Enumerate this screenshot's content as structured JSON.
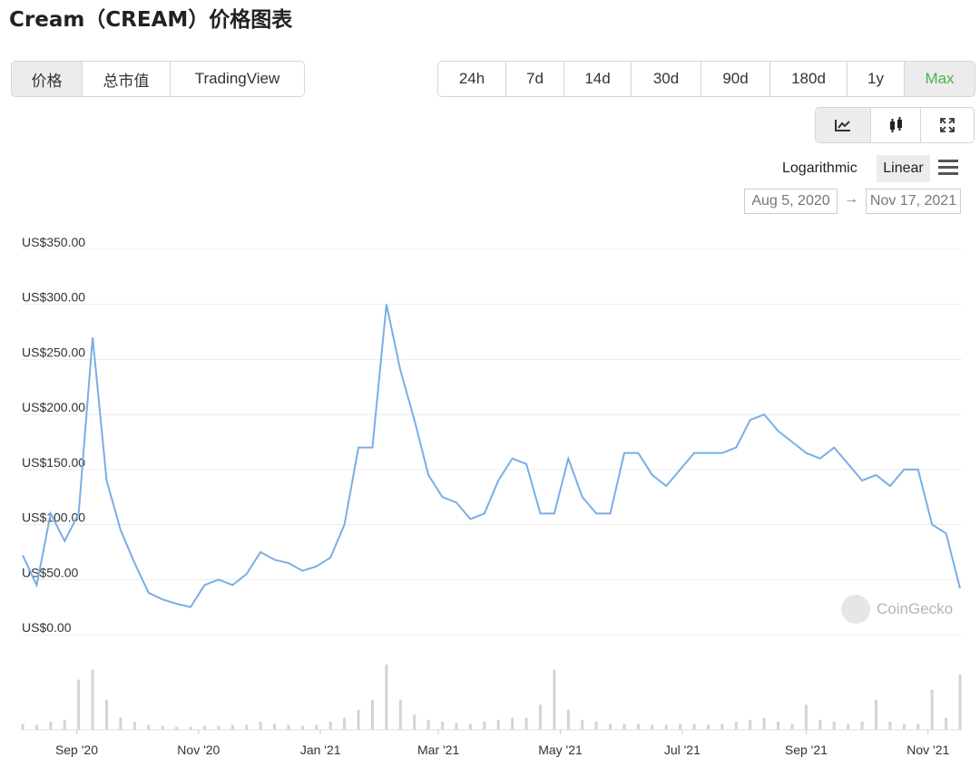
{
  "header": {
    "title": "Cream（CREAM）价格图表"
  },
  "tabs": [
    "价格",
    "总市值",
    "TradingView"
  ],
  "ranges": [
    "24h",
    "7d",
    "14d",
    "30d",
    "90d",
    "180d",
    "1y",
    "Max"
  ],
  "scale_options": [
    "Logarithmic",
    "Linear"
  ],
  "date_range": {
    "from": "Aug 5, 2020",
    "arrow": "→",
    "to": "Nov 17, 2021"
  },
  "watermark": "CoinGecko",
  "chart_data": {
    "type": "line",
    "color": "#7aaee6",
    "x": [
      "2020-08-05",
      "2020-08-12",
      "2020-08-19",
      "2020-08-26",
      "2020-09-02",
      "2020-09-09",
      "2020-09-16",
      "2020-09-23",
      "2020-09-30",
      "2020-10-07",
      "2020-10-14",
      "2020-10-21",
      "2020-10-28",
      "2020-11-04",
      "2020-11-11",
      "2020-11-18",
      "2020-11-25",
      "2020-12-02",
      "2020-12-09",
      "2020-12-16",
      "2020-12-23",
      "2020-12-30",
      "2021-01-06",
      "2021-01-13",
      "2021-01-20",
      "2021-01-27",
      "2021-02-03",
      "2021-02-10",
      "2021-02-17",
      "2021-02-24",
      "2021-03-03",
      "2021-03-10",
      "2021-03-17",
      "2021-03-24",
      "2021-03-31",
      "2021-04-07",
      "2021-04-14",
      "2021-04-21",
      "2021-04-28",
      "2021-05-05",
      "2021-05-12",
      "2021-05-19",
      "2021-05-26",
      "2021-06-02",
      "2021-06-09",
      "2021-06-16",
      "2021-06-23",
      "2021-06-30",
      "2021-07-07",
      "2021-07-14",
      "2021-07-21",
      "2021-07-28",
      "2021-08-04",
      "2021-08-11",
      "2021-08-18",
      "2021-08-25",
      "2021-09-01",
      "2021-09-08",
      "2021-09-15",
      "2021-09-22",
      "2021-09-29",
      "2021-10-06",
      "2021-10-13",
      "2021-10-20",
      "2021-10-27",
      "2021-11-03",
      "2021-11-10",
      "2021-11-17"
    ],
    "values": [
      72,
      45,
      110,
      85,
      110,
      270,
      140,
      95,
      65,
      38,
      32,
      28,
      25,
      45,
      50,
      45,
      55,
      75,
      68,
      65,
      58,
      62,
      70,
      100,
      170,
      170,
      300,
      240,
      195,
      145,
      125,
      120,
      105,
      110,
      140,
      160,
      155,
      110,
      110,
      160,
      125,
      110,
      110,
      165,
      165,
      145,
      135,
      150,
      165,
      165,
      165,
      170,
      195,
      200,
      185,
      175,
      165,
      160,
      170,
      155,
      140,
      145,
      135,
      150,
      150,
      100,
      92,
      42
    ],
    "volume": [
      6,
      5,
      8,
      10,
      50,
      60,
      30,
      12,
      8,
      5,
      4,
      3,
      3,
      4,
      4,
      5,
      5,
      8,
      6,
      5,
      4,
      5,
      8,
      12,
      20,
      30,
      65,
      30,
      15,
      10,
      8,
      7,
      6,
      8,
      10,
      12,
      12,
      25,
      60,
      20,
      10,
      8,
      6,
      6,
      6,
      5,
      5,
      6,
      6,
      5,
      6,
      8,
      10,
      12,
      8,
      6,
      25,
      10,
      8,
      6,
      8,
      30,
      8,
      6,
      6,
      40,
      12,
      55
    ],
    "ylim": [
      0,
      350
    ],
    "yticks": [
      {
        "value": 0,
        "label": "US$0.00"
      },
      {
        "value": 50,
        "label": "US$50.00"
      },
      {
        "value": 100,
        "label": "US$100.00"
      },
      {
        "value": 150,
        "label": "US$150.00"
      },
      {
        "value": 200,
        "label": "US$200.00"
      },
      {
        "value": 250,
        "label": "US$250.00"
      },
      {
        "value": 300,
        "label": "US$300.00"
      },
      {
        "value": 350,
        "label": "US$350.00"
      }
    ],
    "xlim": [
      "2020-08-05",
      "2021-11-17"
    ],
    "xticks": [
      {
        "value": "2020-09-01",
        "label": "Sep '20"
      },
      {
        "value": "2020-11-01",
        "label": "Nov '20"
      },
      {
        "value": "2021-01-01",
        "label": "Jan '21"
      },
      {
        "value": "2021-03-01",
        "label": "Mar '21"
      },
      {
        "value": "2021-05-01",
        "label": "May '21"
      },
      {
        "value": "2021-07-01",
        "label": "Jul '21"
      },
      {
        "value": "2021-09-01",
        "label": "Sep '21"
      },
      {
        "value": "2021-11-01",
        "label": "Nov '21"
      }
    ],
    "grid": true
  }
}
